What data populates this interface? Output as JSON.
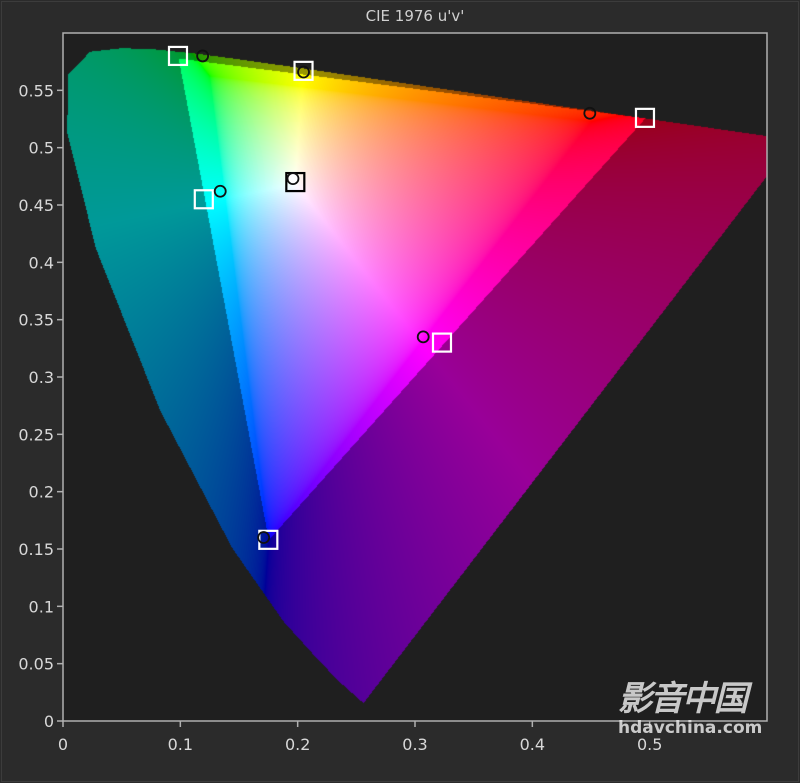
{
  "chart_data": {
    "type": "scatter",
    "title": "CIE 1976 u'v'",
    "xlabel": "",
    "ylabel": "",
    "xlim": [
      0,
      0.6
    ],
    "ylim": [
      0,
      0.6
    ],
    "x_ticks": [
      "0",
      "0.1",
      "0.2",
      "0.3",
      "0.4",
      "0.5"
    ],
    "x_tick_values": [
      0,
      0.1,
      0.2,
      0.3,
      0.4,
      0.5
    ],
    "y_ticks": [
      "0",
      "0.05",
      "0.1",
      "0.15",
      "0.2",
      "0.25",
      "0.3",
      "0.35",
      "0.4",
      "0.45",
      "0.5",
      "0.55"
    ],
    "y_tick_values": [
      0,
      0.05,
      0.1,
      0.15,
      0.2,
      0.25,
      0.3,
      0.35,
      0.4,
      0.45,
      0.5,
      0.55
    ],
    "grid": false,
    "gamut_triangle": {
      "red": [
        0.4964,
        0.5256
      ],
      "green": [
        0.0986,
        0.5777
      ],
      "blue": [
        0.1754,
        0.1579
      ]
    },
    "targets": [
      {
        "color": "red",
        "u": 0.496,
        "v": 0.526
      },
      {
        "color": "green",
        "u": 0.098,
        "v": 0.58
      },
      {
        "color": "blue",
        "u": 0.175,
        "v": 0.158
      },
      {
        "color": "cyan",
        "u": 0.12,
        "v": 0.455
      },
      {
        "color": "magenta",
        "u": 0.323,
        "v": 0.33
      },
      {
        "color": "yellow",
        "u": 0.205,
        "v": 0.567
      },
      {
        "color": "white",
        "u": 0.198,
        "v": 0.47
      }
    ],
    "measured": [
      {
        "color": "red",
        "u": 0.449,
        "v": 0.53
      },
      {
        "color": "green",
        "u": 0.119,
        "v": 0.58
      },
      {
        "color": "blue",
        "u": 0.171,
        "v": 0.16
      },
      {
        "color": "cyan",
        "u": 0.134,
        "v": 0.462
      },
      {
        "color": "magenta",
        "u": 0.307,
        "v": 0.335
      },
      {
        "color": "yellow",
        "u": 0.205,
        "v": 0.566
      },
      {
        "color": "white",
        "u": 0.196,
        "v": 0.473
      }
    ],
    "target_marker": "square",
    "measured_marker": "circle"
  },
  "colors": {
    "background": "#2b2b2b",
    "plot_background": "#1f1f1f",
    "axis": "#b0b0b0",
    "target_marker": "#ffffff",
    "measured_marker": "#111111"
  },
  "watermark": {
    "logo_text": "影音中国",
    "site": "hdavchina.com"
  }
}
